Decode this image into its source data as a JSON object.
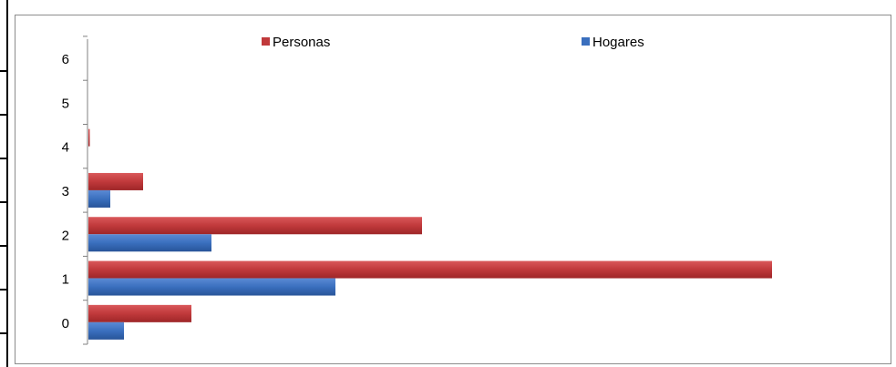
{
  "chart_data": {
    "type": "bar",
    "orientation": "horizontal",
    "title": "",
    "xlabel": "",
    "ylabel": "",
    "categories": [
      "0",
      "1",
      "2",
      "3",
      "4",
      "5",
      "6"
    ],
    "series": [
      {
        "name": "Personas",
        "color": "#c0393b",
        "values": [
          113,
          750,
          366,
          60,
          1,
          0,
          0
        ]
      },
      {
        "name": "Hogares",
        "color": "#3a6fbe",
        "values": [
          39,
          271,
          135,
          24,
          0,
          0,
          0
        ]
      }
    ],
    "xlim": [
      0,
      880
    ],
    "grid": false,
    "legend": {
      "position": "top"
    }
  }
}
